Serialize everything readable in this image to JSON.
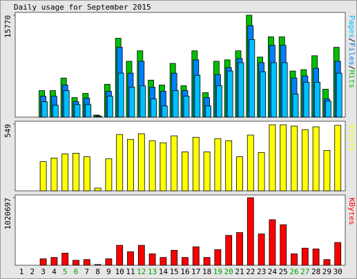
{
  "chart_data": [
    {
      "type": "bar",
      "title": "Daily usage for September 2015",
      "series": [
        {
          "name": "Hits",
          "color": "#00c000",
          "values": [
            0,
            0,
            4100,
            4100,
            6050,
            3020,
            3670,
            320,
            5080,
            12200,
            8640,
            10260,
            5720,
            4970,
            8310,
            4860,
            10260,
            3780,
            8640,
            8860,
            10260,
            15770,
            9290,
            12420,
            12420,
            7130,
            7340,
            9500,
            4320,
            10800
          ]
        },
        {
          "name": "Files",
          "color": "#0080ff",
          "values": [
            0,
            0,
            3240,
            3240,
            4970,
            2380,
            2920,
            220,
            4000,
            10800,
            6800,
            8640,
            4640,
            4000,
            6800,
            4100,
            8860,
            3020,
            6590,
            7670,
            9070,
            14150,
            8420,
            11120,
            11120,
            6050,
            6370,
            7560,
            2810,
            8640
          ]
        },
        {
          "name": "Pages",
          "color": "#00c0ff",
          "values": [
            0,
            0,
            2380,
            1840,
            4100,
            1940,
            1940,
            110,
            3240,
            6800,
            4640,
            4860,
            2810,
            1730,
            4100,
            3240,
            6480,
            1730,
            4860,
            7130,
            8420,
            11990,
            7020,
            8420,
            8420,
            3560,
            5400,
            5400,
            2480,
            6800
          ]
        }
      ],
      "legend_separator": "/",
      "ylim": [
        0,
        15770
      ],
      "yticks": [
        15770
      ]
    },
    {
      "type": "bar",
      "series": [
        {
          "name": "Visits",
          "color": "#ffff00",
          "values": [
            0,
            0,
            240,
            269,
            303,
            309,
            280,
            23,
            263,
            463,
            423,
            469,
            412,
            395,
            452,
            320,
            440,
            320,
            429,
            412,
            280,
            458,
            315,
            543,
            543,
            532,
            503,
            526,
            332,
            538
          ]
        }
      ],
      "ylim": [
        0,
        549
      ],
      "yticks": [
        549
      ]
    },
    {
      "type": "bar",
      "series": [
        {
          "name": "KBytes",
          "color": "#ff0000",
          "values": [
            0,
            0,
            97000,
            118000,
            183000,
            75000,
            86000,
            11000,
            97000,
            301000,
            204000,
            301000,
            172000,
            118000,
            226000,
            118000,
            279000,
            118000,
            236000,
            451000,
            494000,
            1020697,
            473000,
            688000,
            612000,
            172000,
            258000,
            247000,
            86000,
            344000
          ]
        }
      ],
      "ylim": [
        0,
        1020697
      ],
      "yticks": [
        1020697
      ],
      "categories": [
        "1",
        "2",
        "3",
        "4",
        "5",
        "6",
        "7",
        "8",
        "9",
        "10",
        "11",
        "12",
        "13",
        "14",
        "15",
        "16",
        "17",
        "18",
        "19",
        "20",
        "21",
        "22",
        "23",
        "24",
        "25",
        "26",
        "27",
        "28",
        "29",
        "30"
      ],
      "category_colors": [
        "#000000",
        "#000000",
        "#000000",
        "#000000",
        "#00a000",
        "#00a000",
        "#000000",
        "#000000",
        "#000000",
        "#000000",
        "#000000",
        "#00a000",
        "#00a000",
        "#000000",
        "#000000",
        "#000000",
        "#000000",
        "#000000",
        "#00a000",
        "#00a000",
        "#000000",
        "#000000",
        "#000000",
        "#000000",
        "#000000",
        "#00a000",
        "#00a000",
        "#000000",
        "#000000",
        "#000000"
      ]
    }
  ]
}
